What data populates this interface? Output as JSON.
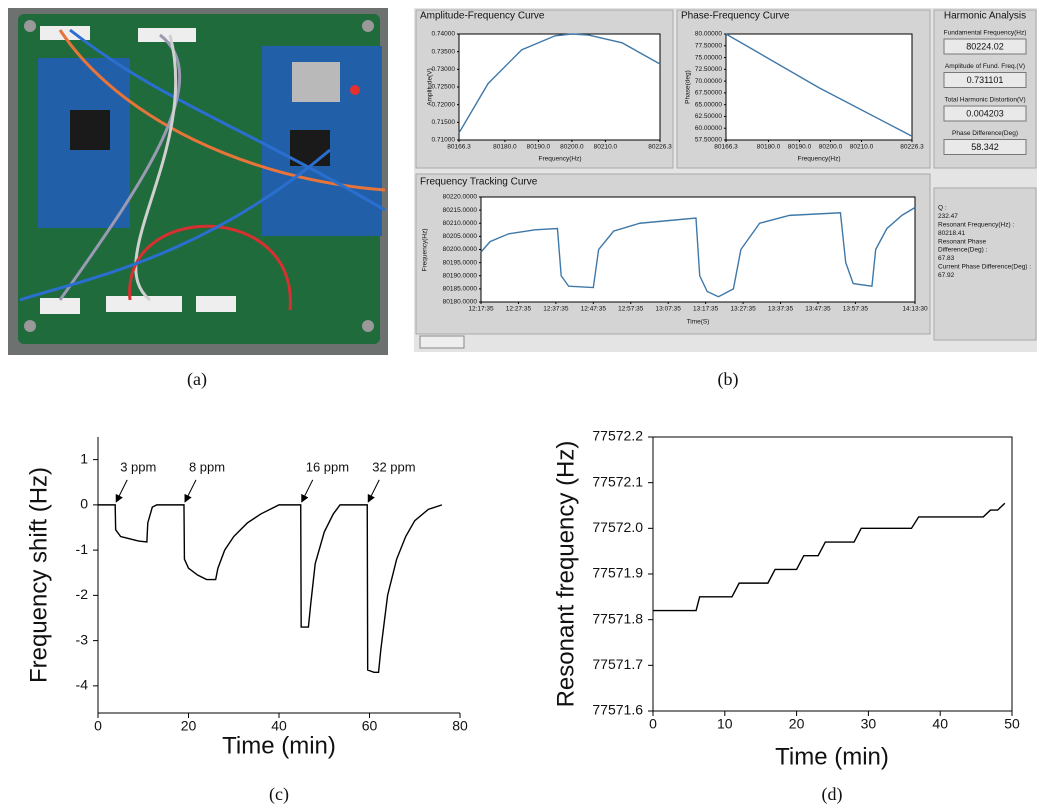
{
  "panel_labels": [
    "(a)",
    "(b)",
    "(c)",
    "(d)"
  ],
  "harmonic_analysis": {
    "title": "Harmonic Analysis",
    "fields": [
      {
        "label": "Fundamental Frequency(Hz)",
        "value": "80224.02"
      },
      {
        "label": "Amplitude of Fund. Freq.(V)",
        "value": "0.731101"
      },
      {
        "label": "Total Harmonic Distortion(V)",
        "value": "0.004203"
      },
      {
        "label": "Phase Difference(Deg)",
        "value": "58.342"
      }
    ]
  },
  "tracking_info": [
    "Q :",
    "232.47",
    "Resonant Frequency(Hz) :",
    "80218.41",
    "Resonant Phase",
    "Difference(Deg) :",
    "67.83",
    "Current Phase Difference(Deg) :",
    "67.92"
  ],
  "chart_data": [
    {
      "type": "line",
      "title": "Amplitude-Frequency Curve",
      "x_label": "Frequency(Hz)",
      "y_label": "Amplitude(V)",
      "color": "#3f78a8",
      "x": [
        80166.3,
        80175,
        80185,
        80195,
        80200,
        80205,
        80215,
        80226.3
      ],
      "y": [
        0.712,
        0.726,
        0.7355,
        0.7395,
        0.74,
        0.7397,
        0.7375,
        0.7315
      ],
      "xlim": [
        80166.3,
        80226.3
      ],
      "xticks": [
        80166.3,
        {
          "value": 80180,
          "label": "80180.0"
        },
        {
          "value": 80190,
          "label": "80190.0"
        },
        {
          "value": 80200,
          "label": "80200.0"
        },
        {
          "value": 80210,
          "label": "80210.0"
        },
        80226.3
      ],
      "ylim": [
        0.71,
        0.74
      ],
      "yticks": [
        {
          "value": 0.71,
          "label": "0.71000"
        },
        {
          "value": 0.715,
          "label": "0.71500"
        },
        {
          "value": 0.72,
          "label": "0.72000"
        },
        {
          "value": 0.725,
          "label": "0.72500"
        },
        {
          "value": 0.73,
          "label": "0.73000"
        },
        {
          "value": 0.735,
          "label": "0.73500"
        },
        {
          "value": 0.74,
          "label": "0.74000"
        }
      ],
      "grid": false
    },
    {
      "type": "line",
      "title": "Phase-Frequency Curve",
      "x_label": "Frequency(Hz)",
      "y_label": "Phase(deg)",
      "color": "#3f78a8",
      "x": [
        80166.3,
        80196.3,
        80226.3
      ],
      "y": [
        80,
        68.6,
        58.3
      ],
      "xlim": [
        80166.3,
        80226.3
      ],
      "xticks": [
        80166.3,
        {
          "value": 80180,
          "label": "80180.0"
        },
        {
          "value": 80190,
          "label": "80190.0"
        },
        {
          "value": 80200,
          "label": "80200.0"
        },
        {
          "value": 80210,
          "label": "80210.0"
        },
        80226.3
      ],
      "ylim": [
        57.5,
        80
      ],
      "yticks": [
        {
          "value": 57.5,
          "label": "57.50000"
        },
        {
          "value": 60,
          "label": "60.00000"
        },
        {
          "value": 62.5,
          "label": "62.50000"
        },
        {
          "value": 65,
          "label": "65.00000"
        },
        {
          "value": 67.5,
          "label": "67.50000"
        },
        {
          "value": 70,
          "label": "70.00000"
        },
        {
          "value": 72.5,
          "label": "72.50000"
        },
        {
          "value": 75,
          "label": "75.00000"
        },
        {
          "value": 77.5,
          "label": "77.50000"
        },
        {
          "value": 80,
          "label": "80.00000"
        }
      ],
      "grid": false
    },
    {
      "type": "line",
      "title": "Frequency Tracking Curve",
      "x_label": "Time(S)",
      "y_label": "Frequency(Hz)",
      "color": "#3f78a8",
      "x": [
        "12:17:35",
        "12:20:00",
        "12:25:00",
        "12:32:00",
        "12:38:00",
        "12:39:00",
        "12:41:00",
        "12:47:35",
        "12:49:00",
        "12:53:00",
        "13:00:00",
        "13:15:00",
        "13:16:00",
        "13:18:00",
        "13:21:00",
        "13:25:00",
        "13:27:00",
        "13:32:00",
        "13:40:00",
        "13:53:35",
        "13:55:00",
        "13:57:00",
        "14:02:00",
        "14:03:00",
        "14:06:00",
        "14:10:00",
        "14:13:30"
      ],
      "y": [
        80199,
        80203,
        80206,
        80207.5,
        80208,
        80190,
        80186,
        80185.5,
        80200,
        80207,
        80210,
        80212,
        80190,
        80184,
        80182,
        80185,
        80200,
        80210,
        80213,
        80214,
        80195,
        80187,
        80186,
        80200,
        80208,
        80213,
        80216
      ],
      "xlim": [
        "12:17:35",
        "14:13:30"
      ],
      "xticks": [
        "12:17:35",
        "12:27:35",
        "12:37:35",
        "12:47:35",
        "12:57:35",
        "13:07:35",
        "13:17:35",
        "13:27:35",
        "13:37:35",
        "13:47:35",
        "13:57:35",
        "14:13:30"
      ],
      "ylim": [
        80180,
        80220
      ],
      "yticks": [
        {
          "value": 80180,
          "label": "80180.0000"
        },
        {
          "value": 80185,
          "label": "80185.0000"
        },
        {
          "value": 80190,
          "label": "80190.0000"
        },
        {
          "value": 80195,
          "label": "80195.0000"
        },
        {
          "value": 80200,
          "label": "80200.0000"
        },
        {
          "value": 80205,
          "label": "80205.0000"
        },
        {
          "value": 80210,
          "label": "80210.0000"
        },
        {
          "value": 80215,
          "label": "80215.0000"
        },
        {
          "value": 80220,
          "label": "80220.0000"
        }
      ],
      "grid": false
    },
    {
      "type": "line",
      "x_label": "Time (min)",
      "y_label": "Frequency shift (Hz)",
      "color": "#000000",
      "x": [
        0,
        3.8,
        3.9,
        5,
        7,
        9,
        10.8,
        11,
        12,
        13,
        19,
        19.1,
        20,
        22,
        24,
        26,
        26.5,
        28,
        30,
        33,
        36,
        40,
        44.8,
        44.9,
        46.5,
        47,
        48,
        50,
        52,
        53.5,
        59.5,
        59.6,
        61,
        62,
        62.5,
        64,
        66,
        68,
        70,
        73,
        76
      ],
      "y": [
        0,
        0,
        -0.55,
        -0.7,
        -0.75,
        -0.8,
        -0.82,
        -0.4,
        -0.05,
        0,
        0,
        -1.2,
        -1.4,
        -1.55,
        -1.65,
        -1.65,
        -1.4,
        -1.0,
        -0.7,
        -0.4,
        -0.2,
        0,
        0,
        -2.7,
        -2.7,
        -2.2,
        -1.3,
        -0.6,
        -0.2,
        0,
        0,
        -3.65,
        -3.7,
        -3.7,
        -3.2,
        -2.0,
        -1.2,
        -0.7,
        -0.35,
        -0.1,
        0
      ],
      "xlim": [
        0,
        80
      ],
      "xticks": [
        0,
        20,
        40,
        60,
        80
      ],
      "ylim": [
        -4.6,
        1.5
      ],
      "yticks": [
        -4,
        -3,
        -2,
        -1,
        0,
        1
      ],
      "grid": false,
      "annotations": [
        {
          "text": "3 ppm",
          "x": 3.8,
          "y": 0
        },
        {
          "text": "8 ppm",
          "x": 19,
          "y": 0
        },
        {
          "text": "16 ppm",
          "x": 44.8,
          "y": 0
        },
        {
          "text": "32 ppm",
          "x": 59.5,
          "y": 0
        }
      ]
    },
    {
      "type": "line",
      "x_label": "Time (min)",
      "y_label": "Resonant frequency (Hz)",
      "color": "#000000",
      "x": [
        0,
        6,
        6.5,
        11,
        12,
        16,
        17,
        20,
        21,
        23,
        24,
        28,
        29,
        36,
        37,
        46,
        47,
        48,
        49
      ],
      "y": [
        77571.82,
        77571.82,
        77571.85,
        77571.85,
        77571.88,
        77571.88,
        77571.91,
        77571.91,
        77571.94,
        77571.94,
        77571.97,
        77571.97,
        77572.0,
        77572.0,
        77572.025,
        77572.025,
        77572.04,
        77572.04,
        77572.055
      ],
      "xlim": [
        0,
        50
      ],
      "xticks": [
        0,
        10,
        20,
        30,
        40,
        50
      ],
      "ylim": [
        77571.6,
        77572.2
      ],
      "yticks": [
        77571.6,
        77571.7,
        77571.8,
        77571.9,
        {
          "value": 77572.0,
          "label": "77572.0"
        },
        77572.1,
        77572.2
      ],
      "grid": false
    }
  ]
}
